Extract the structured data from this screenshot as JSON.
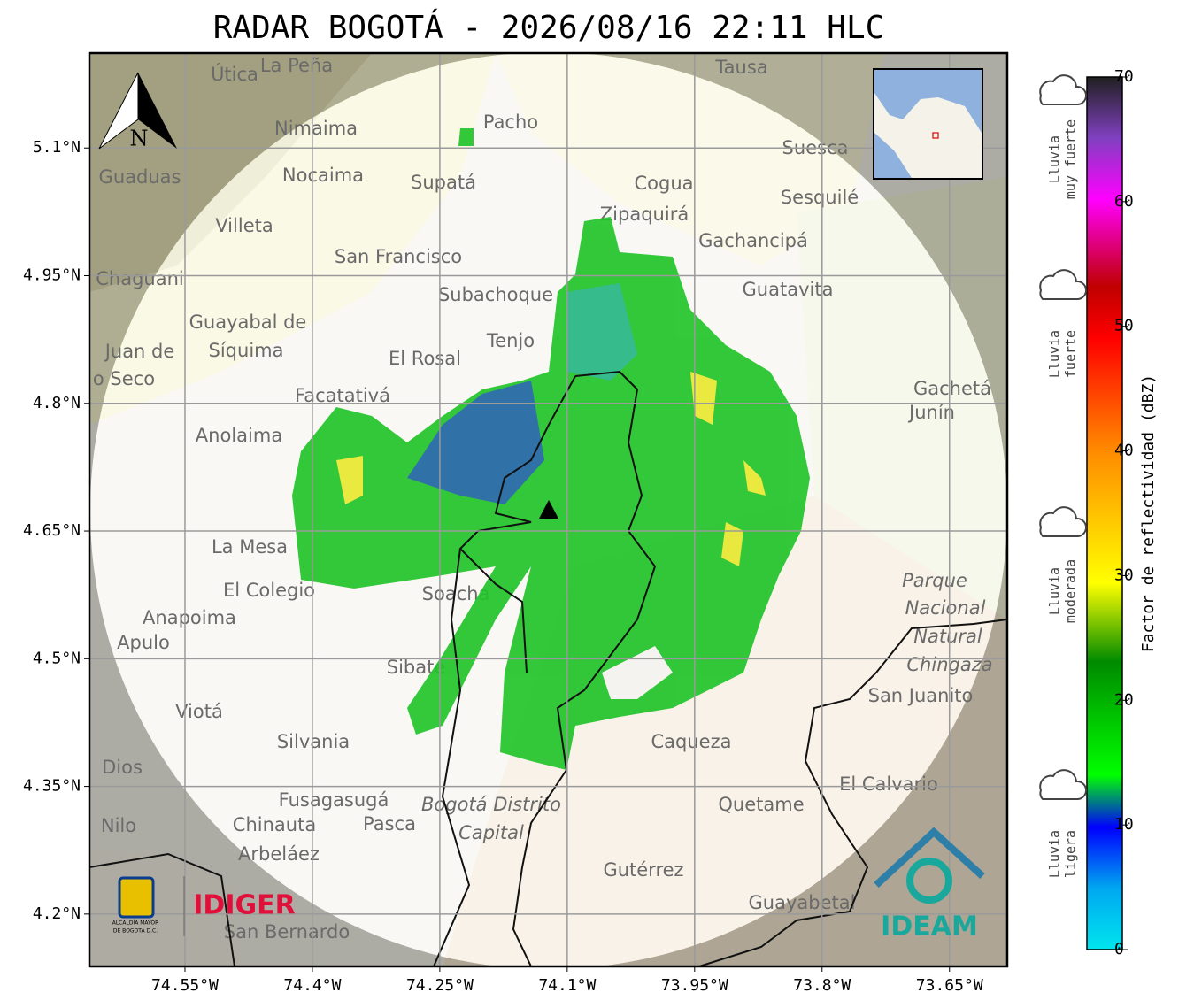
{
  "title": "RADAR BOGOTÁ - 2026/08/16 22:11 HLC",
  "map": {
    "xlim": [
      -74.6625,
      -73.582
    ],
    "ylim": [
      4.1385,
      5.2115
    ],
    "xticks": [
      {
        "value": -74.55,
        "label": "74.55°W"
      },
      {
        "value": -74.4,
        "label": "74.4°W"
      },
      {
        "value": -74.25,
        "label": "74.25°W"
      },
      {
        "value": -74.1,
        "label": "74.1°W"
      },
      {
        "value": -73.95,
        "label": "73.95°W"
      },
      {
        "value": -73.8,
        "label": "73.8°W"
      },
      {
        "value": -73.65,
        "label": "73.65°W"
      }
    ],
    "yticks": [
      {
        "value": 5.1,
        "label": "5.1°N"
      },
      {
        "value": 4.95,
        "label": "4.95°N"
      },
      {
        "value": 4.8,
        "label": "4.8°N"
      },
      {
        "value": 4.65,
        "label": "4.65°N"
      },
      {
        "value": 4.5,
        "label": "4.5°N"
      },
      {
        "value": 4.35,
        "label": "4.35°N"
      },
      {
        "value": 4.2,
        "label": "4.2°N"
      }
    ],
    "grid": true,
    "places": [
      "Útica",
      "La Peña",
      "Tausa",
      "Pacho",
      "Nimaima",
      "Guaduas",
      "Nocaima",
      "Supatá",
      "Cogua",
      "Suesca",
      "Sesquilé",
      "Villeta",
      "Zipaquirá",
      "Gachancipá",
      "San Francisco",
      "Chaguani",
      "Guatavita",
      "Subachoque",
      "Guayabal de",
      "Síquima",
      "Tenjo",
      "El Rosal",
      "Juan de",
      "o Seco",
      "Facatativá",
      "Gachetá",
      "Junín",
      "Anolaima",
      "La Mesa",
      "El Colegio",
      "Soacha",
      "Anapoima",
      "Apulo",
      "Parque",
      "Nacional",
      "Natural",
      "Chingaza",
      "San Juanito",
      "Sibaté",
      "Viotá",
      "Silvania",
      "Caqueza",
      "Dios",
      "El Calvario",
      "Fusagasugá",
      "Bogotá Distrito",
      "Capital",
      "Quetame",
      "Nilo",
      "Chinauta",
      "Pasca",
      "Arbeláez",
      "Gutérrez",
      "Guayabetal",
      "San Bernardo"
    ],
    "north": "N"
  },
  "colorbar": {
    "label": "Factor de reflectividad (dBZ)",
    "lim": [
      0,
      70
    ],
    "ticks": [
      0,
      10,
      20,
      30,
      40,
      50,
      60,
      70
    ]
  },
  "legend": [
    [
      "Lluvia",
      "muy fuerte"
    ],
    [
      "Lluvia",
      "fuerte"
    ],
    [
      "Lluvia",
      "moderada"
    ],
    [
      "Lluvia",
      "ligera"
    ]
  ],
  "logos": {
    "alcaldia": [
      "ALCALDÍA MAYOR",
      "DE BOGOTÁ D.C."
    ],
    "idiger": "IDIGER",
    "ideam": "IDEAM"
  }
}
